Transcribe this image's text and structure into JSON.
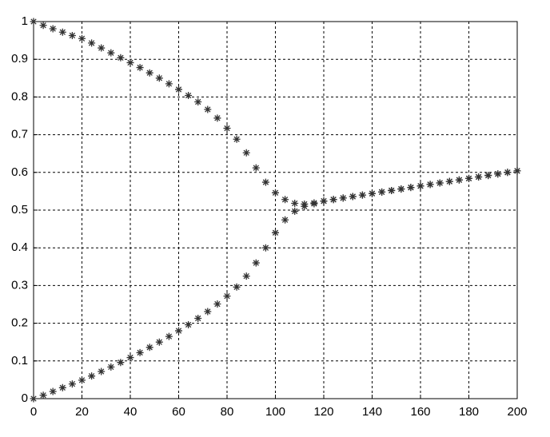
{
  "chart_data": {
    "type": "scatter",
    "x": [
      0,
      4,
      8,
      12,
      16,
      20,
      24,
      28,
      32,
      36,
      40,
      44,
      48,
      52,
      56,
      60,
      64,
      68,
      72,
      76,
      80,
      84,
      88,
      92,
      96,
      100,
      104,
      108,
      112,
      116,
      120,
      124,
      128,
      132,
      136,
      140,
      144,
      148,
      152,
      156,
      160,
      164,
      168,
      172,
      176,
      180,
      184,
      188,
      192,
      196,
      200
    ],
    "series": [
      {
        "color": "#333333",
        "values": [
          1.0,
          0.99,
          0.981,
          0.972,
          0.963,
          0.955,
          0.943,
          0.93,
          0.917,
          0.904,
          0.891,
          0.878,
          0.864,
          0.85,
          0.835,
          0.82,
          0.804,
          0.787,
          0.767,
          0.744,
          0.717,
          0.688,
          0.652,
          0.612,
          0.574,
          0.546,
          0.528,
          0.518,
          0.516,
          0.519,
          0.524,
          0.528,
          0.532,
          0.536,
          0.54,
          0.544,
          0.548,
          0.552,
          0.556,
          0.56,
          0.564,
          0.568,
          0.572,
          0.576,
          0.58,
          0.584,
          0.588,
          0.592,
          0.596,
          0.6,
          0.604
        ]
      },
      {
        "color": "#333333",
        "values": [
          0,
          0.009,
          0.019,
          0.029,
          0.039,
          0.049,
          0.06,
          0.072,
          0.084,
          0.096,
          0.109,
          0.122,
          0.136,
          0.15,
          0.165,
          0.18,
          0.196,
          0.213,
          0.231,
          0.251,
          0.272,
          0.296,
          0.325,
          0.36,
          0.4,
          0.44,
          0.474,
          0.497,
          0.51,
          0.517,
          0.524,
          0.528,
          0.532,
          0.536,
          0.54,
          0.544,
          0.548,
          0.552,
          0.556,
          0.56,
          0.564,
          0.568,
          0.572,
          0.576,
          0.58,
          0.584,
          0.588,
          0.592,
          0.596,
          0.6,
          0.604
        ]
      }
    ],
    "xlim": [
      0,
      200
    ],
    "ylim": [
      0,
      1
    ],
    "xticks": [
      0,
      20,
      40,
      60,
      80,
      100,
      120,
      140,
      160,
      180,
      200
    ],
    "yticks": [
      0,
      0.1,
      0.2,
      0.3,
      0.4,
      0.5,
      0.6,
      0.7,
      0.8,
      0.9,
      1
    ],
    "grid": true
  }
}
